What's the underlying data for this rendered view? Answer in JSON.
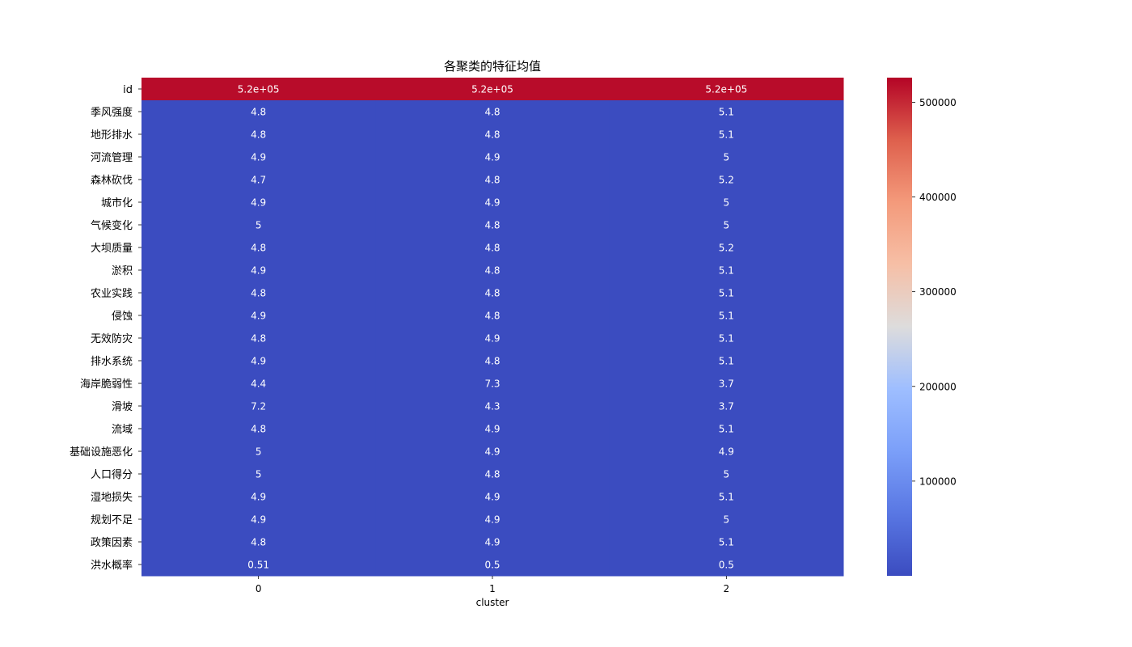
{
  "chart_data": {
    "type": "heatmap",
    "title": "各聚类的特征均值",
    "xlabel": "cluster",
    "ylabel": "",
    "x_categories": [
      "0",
      "1",
      "2"
    ],
    "y_categories": [
      "id",
      "季风强度",
      "地形排水",
      "河流管理",
      "森林砍伐",
      "城市化",
      "气候变化",
      "大坝质量",
      "淤积",
      "农业实践",
      "侵蚀",
      "无效防灾",
      "排水系统",
      "海岸脆弱性",
      "滑坡",
      "流域",
      "基础设施恶化",
      "人口得分",
      "湿地损失",
      "规划不足",
      "政策因素",
      "洪水概率"
    ],
    "values": [
      [
        520000,
        520000,
        520000
      ],
      [
        4.8,
        4.8,
        5.1
      ],
      [
        4.8,
        4.8,
        5.1
      ],
      [
        4.9,
        4.9,
        5
      ],
      [
        4.7,
        4.8,
        5.2
      ],
      [
        4.9,
        4.9,
        5
      ],
      [
        5,
        4.8,
        5
      ],
      [
        4.8,
        4.8,
        5.2
      ],
      [
        4.9,
        4.8,
        5.1
      ],
      [
        4.8,
        4.8,
        5.1
      ],
      [
        4.9,
        4.8,
        5.1
      ],
      [
        4.8,
        4.9,
        5.1
      ],
      [
        4.9,
        4.8,
        5.1
      ],
      [
        4.4,
        7.3,
        3.7
      ],
      [
        7.2,
        4.3,
        3.7
      ],
      [
        4.8,
        4.9,
        5.1
      ],
      [
        5,
        4.9,
        4.9
      ],
      [
        5,
        4.8,
        5
      ],
      [
        4.9,
        4.9,
        5.1
      ],
      [
        4.9,
        4.9,
        5
      ],
      [
        4.8,
        4.9,
        5.1
      ],
      [
        0.51,
        0.5,
        0.5
      ]
    ],
    "annotations": [
      [
        "5.2e+05",
        "5.2e+05",
        "5.2e+05"
      ],
      [
        "4.8",
        "4.8",
        "5.1"
      ],
      [
        "4.8",
        "4.8",
        "5.1"
      ],
      [
        "4.9",
        "4.9",
        "5"
      ],
      [
        "4.7",
        "4.8",
        "5.2"
      ],
      [
        "4.9",
        "4.9",
        "5"
      ],
      [
        "5",
        "4.8",
        "5"
      ],
      [
        "4.8",
        "4.8",
        "5.2"
      ],
      [
        "4.9",
        "4.8",
        "5.1"
      ],
      [
        "4.8",
        "4.8",
        "5.1"
      ],
      [
        "4.9",
        "4.8",
        "5.1"
      ],
      [
        "4.8",
        "4.9",
        "5.1"
      ],
      [
        "4.9",
        "4.8",
        "5.1"
      ],
      [
        "4.4",
        "7.3",
        "3.7"
      ],
      [
        "7.2",
        "4.3",
        "3.7"
      ],
      [
        "4.8",
        "4.9",
        "5.1"
      ],
      [
        "5",
        "4.9",
        "4.9"
      ],
      [
        "5",
        "4.8",
        "5"
      ],
      [
        "4.9",
        "4.9",
        "5.1"
      ],
      [
        "4.9",
        "4.9",
        "5"
      ],
      [
        "4.8",
        "4.9",
        "5.1"
      ],
      [
        "0.51",
        "0.5",
        "0.5"
      ]
    ],
    "colormap": "coolwarm",
    "colorbar": {
      "range": [
        0,
        526000
      ],
      "ticks": [
        100000,
        200000,
        300000,
        400000,
        500000
      ],
      "tick_labels": [
        "100000",
        "200000",
        "300000",
        "400000",
        "500000"
      ]
    },
    "colors": {
      "low": "#3b4cc0",
      "high": "#b40426"
    },
    "grid": false,
    "legend": "right"
  }
}
